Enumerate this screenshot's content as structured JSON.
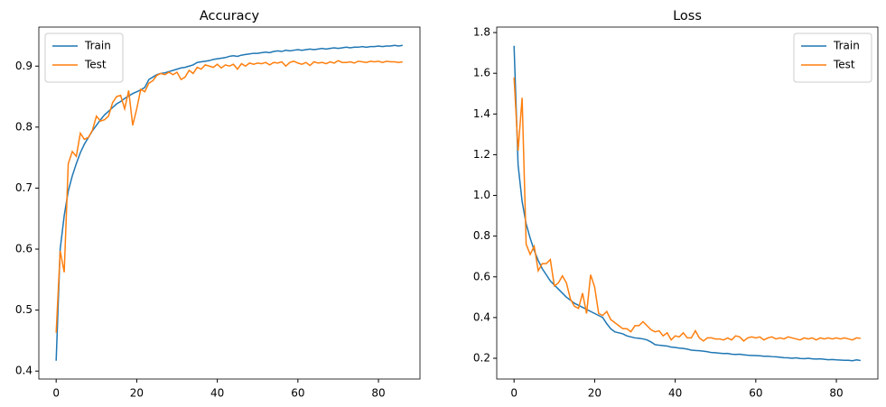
{
  "chart_data": [
    {
      "type": "line",
      "title": "Accuracy",
      "x": [
        0,
        1,
        2,
        3,
        4,
        5,
        6,
        7,
        8,
        9,
        10,
        11,
        12,
        13,
        14,
        15,
        16,
        17,
        18,
        19,
        20,
        21,
        22,
        23,
        24,
        25,
        26,
        27,
        28,
        29,
        30,
        31,
        32,
        33,
        34,
        35,
        36,
        37,
        38,
        39,
        40,
        41,
        42,
        43,
        44,
        45,
        46,
        47,
        48,
        49,
        50,
        51,
        52,
        53,
        54,
        55,
        56,
        57,
        58,
        59,
        60,
        61,
        62,
        63,
        64,
        65,
        66,
        67,
        68,
        69,
        70,
        71,
        72,
        73,
        74,
        75,
        76,
        77,
        78,
        79,
        80,
        81,
        82,
        83,
        84,
        85,
        86
      ],
      "series": [
        {
          "name": "Train",
          "color": "#1f77b4",
          "values": [
            0.417,
            0.6,
            0.655,
            0.695,
            0.72,
            0.74,
            0.758,
            0.772,
            0.783,
            0.794,
            0.803,
            0.812,
            0.82,
            0.826,
            0.832,
            0.838,
            0.842,
            0.847,
            0.851,
            0.855,
            0.858,
            0.861,
            0.865,
            0.878,
            0.882,
            0.886,
            0.888,
            0.889,
            0.891,
            0.893,
            0.895,
            0.897,
            0.898,
            0.9,
            0.902,
            0.906,
            0.907,
            0.908,
            0.909,
            0.911,
            0.912,
            0.913,
            0.914,
            0.916,
            0.917,
            0.916,
            0.918,
            0.919,
            0.92,
            0.921,
            0.921,
            0.922,
            0.923,
            0.922,
            0.924,
            0.925,
            0.924,
            0.926,
            0.925,
            0.926,
            0.927,
            0.926,
            0.927,
            0.928,
            0.927,
            0.928,
            0.929,
            0.928,
            0.929,
            0.93,
            0.929,
            0.93,
            0.931,
            0.93,
            0.931,
            0.931,
            0.932,
            0.931,
            0.932,
            0.932,
            0.933,
            0.932,
            0.933,
            0.933,
            0.934,
            0.933,
            0.934
          ]
        },
        {
          "name": "Test",
          "color": "#ff7f0e",
          "values": [
            0.463,
            0.597,
            0.562,
            0.74,
            0.76,
            0.752,
            0.79,
            0.78,
            0.783,
            0.795,
            0.818,
            0.81,
            0.812,
            0.818,
            0.84,
            0.85,
            0.852,
            0.83,
            0.86,
            0.803,
            0.83,
            0.862,
            0.858,
            0.872,
            0.876,
            0.885,
            0.888,
            0.886,
            0.89,
            0.886,
            0.89,
            0.878,
            0.882,
            0.893,
            0.888,
            0.898,
            0.895,
            0.902,
            0.9,
            0.898,
            0.903,
            0.897,
            0.902,
            0.9,
            0.903,
            0.895,
            0.904,
            0.9,
            0.905,
            0.903,
            0.905,
            0.904,
            0.906,
            0.902,
            0.906,
            0.905,
            0.907,
            0.9,
            0.906,
            0.908,
            0.905,
            0.903,
            0.906,
            0.901,
            0.907,
            0.905,
            0.906,
            0.904,
            0.907,
            0.905,
            0.909,
            0.906,
            0.906,
            0.907,
            0.905,
            0.908,
            0.907,
            0.906,
            0.908,
            0.907,
            0.908,
            0.906,
            0.908,
            0.907,
            0.907,
            0.906,
            0.907
          ]
        }
      ],
      "xlim": [
        -4.3,
        90.3
      ],
      "xticks": [
        0,
        20,
        40,
        60,
        80
      ],
      "ylim": [
        0.387,
        0.964
      ],
      "yticks": [
        0.4,
        0.5,
        0.6,
        0.7,
        0.8,
        0.9
      ],
      "legend": "upper left"
    },
    {
      "type": "line",
      "title": "Loss",
      "x": [
        0,
        1,
        2,
        3,
        4,
        5,
        6,
        7,
        8,
        9,
        10,
        11,
        12,
        13,
        14,
        15,
        16,
        17,
        18,
        19,
        20,
        21,
        22,
        23,
        24,
        25,
        26,
        27,
        28,
        29,
        30,
        31,
        32,
        33,
        34,
        35,
        36,
        37,
        38,
        39,
        40,
        41,
        42,
        43,
        44,
        45,
        46,
        47,
        48,
        49,
        50,
        51,
        52,
        53,
        54,
        55,
        56,
        57,
        58,
        59,
        60,
        61,
        62,
        63,
        64,
        65,
        66,
        67,
        68,
        69,
        70,
        71,
        72,
        73,
        74,
        75,
        76,
        77,
        78,
        79,
        80,
        81,
        82,
        83,
        84,
        85,
        86
      ],
      "series": [
        {
          "name": "Train",
          "color": "#1f77b4",
          "values": [
            1.735,
            1.15,
            0.97,
            0.86,
            0.79,
            0.73,
            0.68,
            0.64,
            0.61,
            0.58,
            0.56,
            0.54,
            0.52,
            0.5,
            0.485,
            0.47,
            0.46,
            0.45,
            0.44,
            0.43,
            0.42,
            0.41,
            0.4,
            0.37,
            0.345,
            0.33,
            0.325,
            0.32,
            0.31,
            0.305,
            0.3,
            0.298,
            0.295,
            0.29,
            0.28,
            0.267,
            0.264,
            0.262,
            0.26,
            0.255,
            0.253,
            0.25,
            0.248,
            0.245,
            0.24,
            0.238,
            0.237,
            0.235,
            0.232,
            0.228,
            0.227,
            0.225,
            0.223,
            0.224,
            0.22,
            0.219,
            0.22,
            0.217,
            0.215,
            0.214,
            0.213,
            0.212,
            0.21,
            0.21,
            0.208,
            0.207,
            0.205,
            0.203,
            0.202,
            0.2,
            0.202,
            0.199,
            0.198,
            0.2,
            0.197,
            0.196,
            0.197,
            0.195,
            0.193,
            0.194,
            0.192,
            0.191,
            0.19,
            0.19,
            0.188,
            0.192,
            0.189
          ]
        },
        {
          "name": "Test",
          "color": "#ff7f0e",
          "values": [
            1.58,
            1.22,
            1.48,
            0.76,
            0.71,
            0.75,
            0.63,
            0.665,
            0.665,
            0.685,
            0.555,
            0.57,
            0.605,
            0.57,
            0.49,
            0.455,
            0.445,
            0.52,
            0.42,
            0.61,
            0.55,
            0.42,
            0.41,
            0.43,
            0.39,
            0.375,
            0.36,
            0.345,
            0.345,
            0.33,
            0.36,
            0.36,
            0.38,
            0.36,
            0.34,
            0.33,
            0.335,
            0.31,
            0.325,
            0.29,
            0.31,
            0.305,
            0.325,
            0.3,
            0.3,
            0.335,
            0.3,
            0.285,
            0.3,
            0.3,
            0.295,
            0.295,
            0.29,
            0.3,
            0.29,
            0.31,
            0.305,
            0.285,
            0.3,
            0.305,
            0.3,
            0.305,
            0.29,
            0.3,
            0.305,
            0.295,
            0.3,
            0.295,
            0.305,
            0.3,
            0.295,
            0.29,
            0.3,
            0.295,
            0.3,
            0.29,
            0.3,
            0.295,
            0.3,
            0.295,
            0.3,
            0.295,
            0.3,
            0.295,
            0.29,
            0.3,
            0.298
          ]
        }
      ],
      "xlim": [
        -4.3,
        90.3
      ],
      "xticks": [
        0,
        20,
        40,
        60,
        80
      ],
      "ylim": [
        0.098,
        1.827
      ],
      "yticks": [
        0.2,
        0.4,
        0.6,
        0.8,
        {
          "value": 1.0,
          "label": "1.0"
        },
        1.2,
        1.4,
        1.6,
        1.8
      ],
      "legend": "upper right"
    }
  ]
}
